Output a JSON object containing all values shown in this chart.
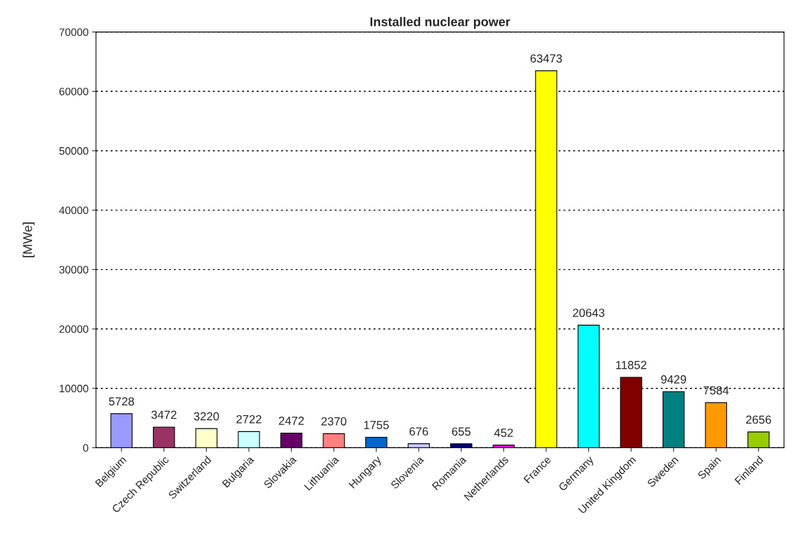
{
  "chart_data": {
    "type": "bar",
    "title": "Installed nuclear power",
    "ylabel": "[MWe]",
    "categories": [
      "Belgium",
      "Czech Republic",
      "Switzerland",
      "Bulgaria",
      "Slovakia",
      "Lithuania",
      "Hungary",
      "Slovenia",
      "Romania",
      "Netherlands",
      "France",
      "Germany",
      "United Kingdom",
      "Sweden",
      "Spain",
      "Finland"
    ],
    "values": [
      5728,
      3472,
      3220,
      2722,
      2472,
      2370,
      1755,
      676,
      655,
      452,
      63473,
      20643,
      11852,
      9429,
      7584,
      2656
    ],
    "colors": [
      "#9999ff",
      "#993366",
      "#ffffcc",
      "#ccffff",
      "#660066",
      "#ff8080",
      "#0066cc",
      "#ccccff",
      "#000080",
      "#ff00ff",
      "#ffff00",
      "#00ffff",
      "#800000",
      "#008080",
      "#ff9900",
      "#99cc00"
    ],
    "ylim": [
      0,
      70000
    ],
    "yticks": [
      0,
      10000,
      20000,
      30000,
      40000,
      50000,
      60000,
      70000
    ],
    "grid": "y",
    "data_labels": true,
    "legend": false
  }
}
